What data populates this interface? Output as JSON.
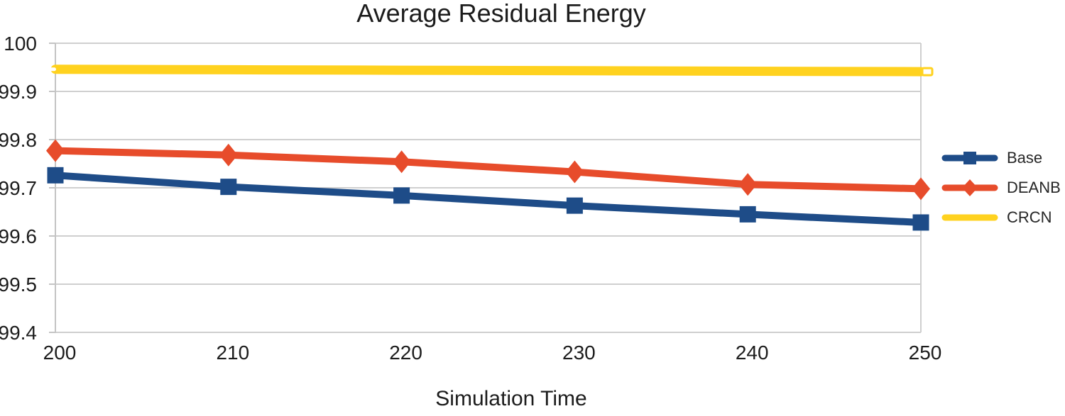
{
  "title": "Average Residual Energy",
  "chart_data": {
    "type": "line",
    "title": "Average Residual Energy",
    "xlabel": "Simulation Time",
    "ylabel": "",
    "x": [
      200,
      210,
      220,
      230,
      240,
      250
    ],
    "xticks": [
      200,
      210,
      220,
      230,
      240,
      250
    ],
    "xtick_labels": [
      "200",
      "210",
      "220",
      "230",
      "240",
      "250"
    ],
    "yticks": [
      99.4,
      99.5,
      99.6,
      99.7,
      99.8,
      99.9,
      100
    ],
    "ytick_labels": [
      "99.4",
      "99.5",
      "99.6",
      "99.7",
      "99.8",
      "99.9",
      "100"
    ],
    "xlim": [
      200,
      250
    ],
    "ylim": [
      99.4,
      100
    ],
    "grid": "horizontal",
    "legend_position": "right",
    "series": [
      {
        "name": "Base",
        "color": "#1E4C88",
        "marker": "square",
        "values": [
          99.726,
          99.702,
          99.684,
          99.663,
          99.645,
          99.628
        ]
      },
      {
        "name": "DEANB",
        "color": "#E74C2B",
        "marker": "diamond",
        "values": [
          99.777,
          99.768,
          99.754,
          99.733,
          99.707,
          99.698
        ]
      },
      {
        "name": "CRCN",
        "color": "#FFD21F",
        "marker": "dash",
        "values": [
          99.946,
          99.945,
          99.944,
          99.943,
          99.942,
          99.941
        ]
      }
    ]
  },
  "colors": {
    "grid": "#CFCFCF",
    "axis": "#C4C4C4",
    "text": "#1C1C1C",
    "background": "#FFFFFF"
  }
}
